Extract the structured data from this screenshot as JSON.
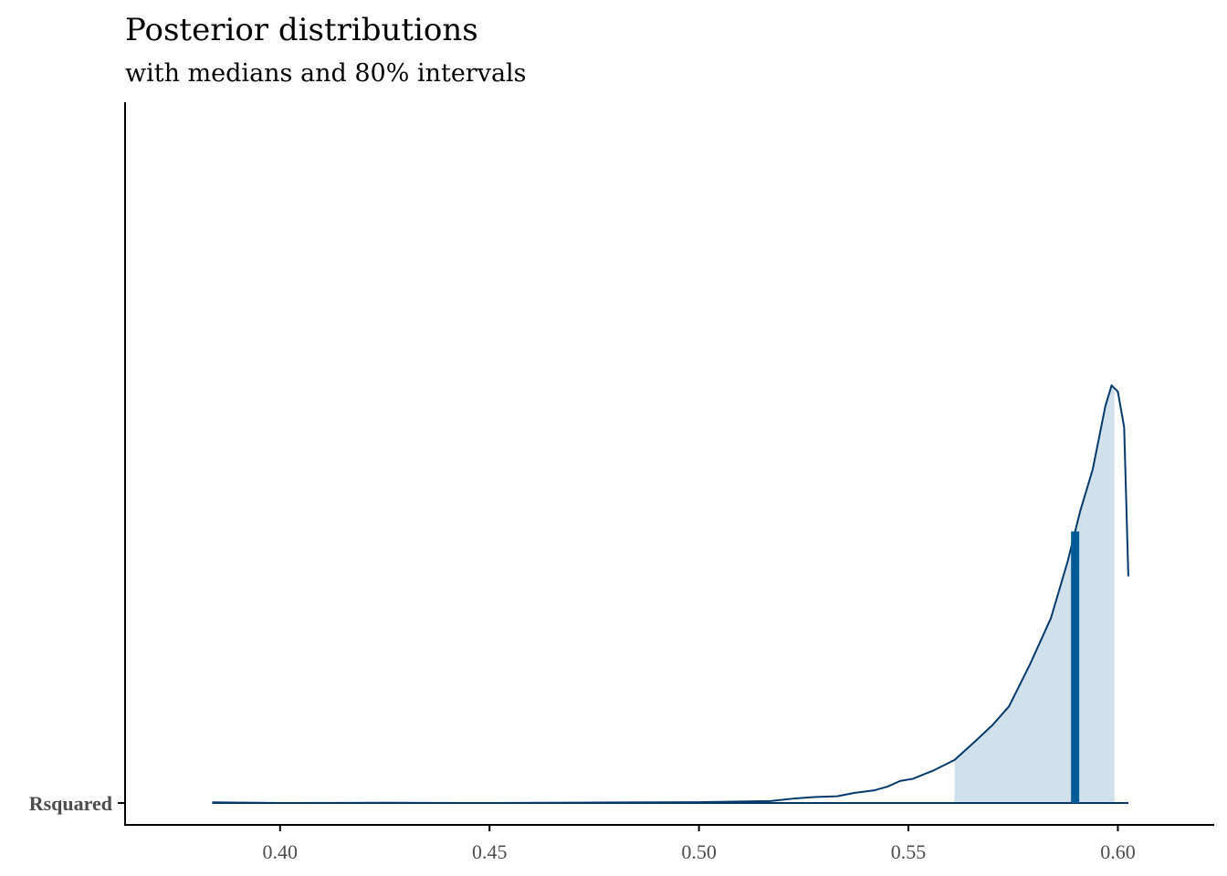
{
  "chart_data": {
    "type": "area",
    "title": "Posterior distributions",
    "subtitle": "with medians and 80% intervals",
    "xlabel": "",
    "ylabel": "",
    "parameter": "Rsquared",
    "xlim": [
      0.363,
      0.623
    ],
    "x_ticks": [
      "0.40",
      "0.45",
      "0.50",
      "0.55",
      "0.60"
    ],
    "x_tick_values": [
      0.4,
      0.45,
      0.5,
      0.55,
      0.6
    ],
    "median": 0.5898,
    "interval_80": [
      0.561,
      0.5992
    ],
    "density": [
      {
        "x": 0.3838,
        "y": 0.003
      },
      {
        "x": 0.4,
        "y": 0.0
      },
      {
        "x": 0.425,
        "y": 0.001
      },
      {
        "x": 0.45,
        "y": 0.0
      },
      {
        "x": 0.475,
        "y": 0.002
      },
      {
        "x": 0.5,
        "y": 0.004
      },
      {
        "x": 0.51,
        "y": 0.007
      },
      {
        "x": 0.517,
        "y": 0.009
      },
      {
        "x": 0.523,
        "y": 0.022
      },
      {
        "x": 0.528,
        "y": 0.029
      },
      {
        "x": 0.533,
        "y": 0.032
      },
      {
        "x": 0.537,
        "y": 0.048
      },
      {
        "x": 0.542,
        "y": 0.061
      },
      {
        "x": 0.545,
        "y": 0.078
      },
      {
        "x": 0.548,
        "y": 0.105
      },
      {
        "x": 0.551,
        "y": 0.115
      },
      {
        "x": 0.556,
        "y": 0.155
      },
      {
        "x": 0.561,
        "y": 0.205
      },
      {
        "x": 0.566,
        "y": 0.295
      },
      {
        "x": 0.57,
        "y": 0.37
      },
      {
        "x": 0.574,
        "y": 0.46
      },
      {
        "x": 0.579,
        "y": 0.66
      },
      {
        "x": 0.584,
        "y": 0.88
      },
      {
        "x": 0.588,
        "y": 1.15
      },
      {
        "x": 0.591,
        "y": 1.39
      },
      {
        "x": 0.594,
        "y": 1.59
      },
      {
        "x": 0.597,
        "y": 1.89
      },
      {
        "x": 0.5985,
        "y": 1.99
      },
      {
        "x": 0.6,
        "y": 1.96
      },
      {
        "x": 0.6015,
        "y": 1.79
      },
      {
        "x": 0.6025,
        "y": 1.08
      }
    ],
    "grid": false,
    "legend": "none",
    "colors": {
      "outline": "#03396c",
      "interval_fill": "#d1e1ec",
      "median_line": "#005b96",
      "axis": "#000000",
      "tick_text": "#4d4d4d"
    }
  }
}
